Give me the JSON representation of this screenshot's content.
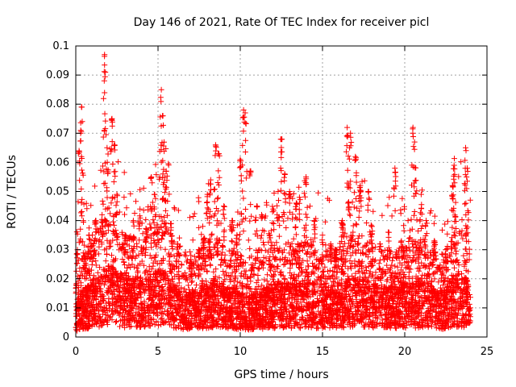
{
  "chart_data": {
    "type": "scatter",
    "title": "Day 146 of 2021, Rate Of TEC Index for receiver picl",
    "xlabel": "GPS time / hours",
    "ylabel": "ROTI / TECUs",
    "xlim": [
      0,
      25
    ],
    "ylim": [
      0,
      0.1
    ],
    "x_ticks": [
      0,
      5,
      10,
      15,
      20,
      25
    ],
    "x_tick_labels": [
      "0",
      "5",
      "10",
      "15",
      "20",
      "25"
    ],
    "y_ticks": [
      0,
      0.01,
      0.02,
      0.03,
      0.04,
      0.05,
      0.06,
      0.07,
      0.08,
      0.09,
      0.1
    ],
    "y_tick_labels": [
      "0",
      "0.01",
      "0.02",
      "0.03",
      "0.04",
      "0.05",
      "0.06",
      "0.07",
      "0.08",
      "0.09",
      "0.1"
    ],
    "grid": true,
    "marker": "+",
    "color": "#ff0000",
    "data_x_range": [
      0,
      24
    ],
    "base_level": [
      [
        0.0,
        0.008
      ],
      [
        0.5,
        0.011
      ],
      [
        1.0,
        0.012
      ],
      [
        1.5,
        0.014
      ],
      [
        2.0,
        0.016
      ],
      [
        2.5,
        0.015
      ],
      [
        3.0,
        0.013
      ],
      [
        3.5,
        0.013
      ],
      [
        4.0,
        0.013
      ],
      [
        4.5,
        0.014
      ],
      [
        5.0,
        0.015
      ],
      [
        5.5,
        0.015
      ],
      [
        6.0,
        0.012
      ],
      [
        6.5,
        0.01
      ],
      [
        7.0,
        0.01
      ],
      [
        7.5,
        0.011
      ],
      [
        8.0,
        0.012
      ],
      [
        8.5,
        0.013
      ],
      [
        9.0,
        0.011
      ],
      [
        9.5,
        0.011
      ],
      [
        10.0,
        0.01
      ],
      [
        10.5,
        0.009
      ],
      [
        11.0,
        0.01
      ],
      [
        11.5,
        0.011
      ],
      [
        12.0,
        0.012
      ],
      [
        12.5,
        0.012
      ],
      [
        13.0,
        0.012
      ],
      [
        13.5,
        0.012
      ],
      [
        14.0,
        0.013
      ],
      [
        14.5,
        0.012
      ],
      [
        15.0,
        0.011
      ],
      [
        15.5,
        0.011
      ],
      [
        16.0,
        0.012
      ],
      [
        16.5,
        0.013
      ],
      [
        17.0,
        0.013
      ],
      [
        17.5,
        0.013
      ],
      [
        18.0,
        0.012
      ],
      [
        18.5,
        0.012
      ],
      [
        19.0,
        0.011
      ],
      [
        19.5,
        0.011
      ],
      [
        20.0,
        0.012
      ],
      [
        20.5,
        0.012
      ],
      [
        21.0,
        0.013
      ],
      [
        21.5,
        0.012
      ],
      [
        22.0,
        0.01
      ],
      [
        22.5,
        0.011
      ],
      [
        23.0,
        0.014
      ],
      [
        23.5,
        0.014
      ],
      [
        24.0,
        0.012
      ]
    ],
    "peaks": [
      [
        0.1,
        0.03
      ],
      [
        0.3,
        0.071
      ],
      [
        0.35,
        0.079
      ],
      [
        0.2,
        0.064
      ],
      [
        0.8,
        0.035
      ],
      [
        1.2,
        0.04
      ],
      [
        1.6,
        0.042
      ],
      [
        1.75,
        0.097
      ],
      [
        1.8,
        0.091
      ],
      [
        1.9,
        0.065
      ],
      [
        2.2,
        0.075
      ],
      [
        2.35,
        0.066
      ],
      [
        2.5,
        0.049
      ],
      [
        3.0,
        0.035
      ],
      [
        3.5,
        0.04
      ],
      [
        3.9,
        0.044
      ],
      [
        4.3,
        0.037
      ],
      [
        4.6,
        0.055
      ],
      [
        4.8,
        0.049
      ],
      [
        5.2,
        0.085
      ],
      [
        5.3,
        0.076
      ],
      [
        5.5,
        0.057
      ],
      [
        5.8,
        0.039
      ],
      [
        6.2,
        0.032
      ],
      [
        7.0,
        0.028
      ],
      [
        7.5,
        0.03
      ],
      [
        7.8,
        0.034
      ],
      [
        8.0,
        0.049
      ],
      [
        8.2,
        0.054
      ],
      [
        8.5,
        0.066
      ],
      [
        8.7,
        0.063
      ],
      [
        9.0,
        0.045
      ],
      [
        9.5,
        0.04
      ],
      [
        9.8,
        0.035
      ],
      [
        10.0,
        0.061
      ],
      [
        10.2,
        0.078
      ],
      [
        10.3,
        0.077
      ],
      [
        10.6,
        0.057
      ],
      [
        11.0,
        0.045
      ],
      [
        11.3,
        0.042
      ],
      [
        11.8,
        0.035
      ],
      [
        12.0,
        0.044
      ],
      [
        12.3,
        0.05
      ],
      [
        12.5,
        0.068
      ],
      [
        12.7,
        0.056
      ],
      [
        13.0,
        0.05
      ],
      [
        13.4,
        0.046
      ],
      [
        13.6,
        0.048
      ],
      [
        14.0,
        0.055
      ],
      [
        14.5,
        0.04
      ],
      [
        15.0,
        0.035
      ],
      [
        15.5,
        0.032
      ],
      [
        15.8,
        0.03
      ],
      [
        16.2,
        0.04
      ],
      [
        16.5,
        0.072
      ],
      [
        16.7,
        0.07
      ],
      [
        17.0,
        0.062
      ],
      [
        17.3,
        0.052
      ],
      [
        17.8,
        0.05
      ],
      [
        18.0,
        0.038
      ],
      [
        18.5,
        0.032
      ],
      [
        19.0,
        0.036
      ],
      [
        19.4,
        0.058
      ],
      [
        19.8,
        0.033
      ],
      [
        20.2,
        0.04
      ],
      [
        20.5,
        0.072
      ],
      [
        20.6,
        0.067
      ],
      [
        21.0,
        0.049
      ],
      [
        21.3,
        0.04
      ],
      [
        21.8,
        0.033
      ],
      [
        22.5,
        0.03
      ],
      [
        22.9,
        0.052
      ],
      [
        23.0,
        0.059
      ],
      [
        23.7,
        0.065
      ],
      [
        23.8,
        0.058
      ]
    ]
  }
}
